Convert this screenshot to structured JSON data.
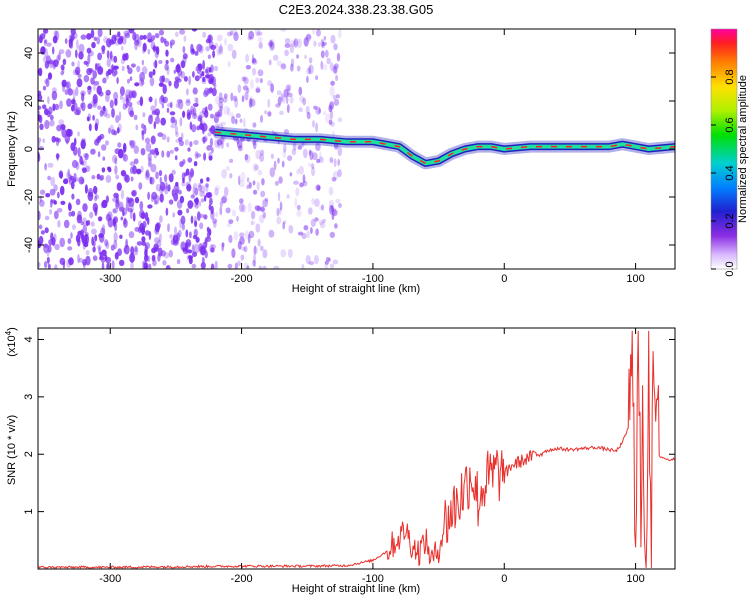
{
  "title": "C2E3.2024.338.23.38.G05",
  "colors": {
    "snr_line": "#e8302c",
    "scatter": "#7a2cf0",
    "track_core": "#ff2020",
    "track_mid": "#20e0a0",
    "track_edge": "#2020c0"
  },
  "chart_data": [
    {
      "type": "heatmap",
      "xlabel": "Height of straight line (km)",
      "ylabel": "Frequency (Hz)",
      "xlim": [
        -355,
        130
      ],
      "ylim": [
        -50,
        50
      ],
      "xticks": [
        -300,
        -200,
        -100,
        0,
        100
      ],
      "yticks": [
        -40,
        -20,
        0,
        20,
        40
      ],
      "grid": false,
      "colorbar": {
        "label": "Normalized spectral amplitude",
        "range": [
          0,
          1
        ],
        "ticks": [
          "0.0",
          "0.2",
          "0.4",
          "0.6",
          "0.8"
        ],
        "tick_values": [
          0.0,
          0.2,
          0.4,
          0.6,
          0.8
        ]
      },
      "noise_regions": [
        {
          "x": [
            -355,
            -220
          ],
          "density": "high"
        },
        {
          "x": [
            -220,
            -125
          ],
          "density": "medium"
        }
      ],
      "signal_track": {
        "x": [
          -220,
          -200,
          -180,
          -160,
          -140,
          -120,
          -100,
          -80,
          -70,
          -60,
          -50,
          -40,
          -30,
          -20,
          -10,
          0,
          20,
          40,
          60,
          80,
          90,
          100,
          110,
          130
        ],
        "y": [
          7,
          6,
          5,
          4,
          4,
          3,
          3,
          1,
          -3,
          -6,
          -5,
          -2,
          0,
          1,
          1,
          0,
          1,
          1,
          1,
          1,
          2,
          1,
          0,
          1
        ]
      }
    },
    {
      "type": "line",
      "xlabel": "Height of straight line (km)",
      "ylabel": "SNR (10 * v/v)",
      "y_multiplier": "(x10",
      "y_multiplier_exp": "4",
      "y_multiplier_close": ")",
      "xlim": [
        -355,
        130
      ],
      "ylim": [
        0,
        4.2
      ],
      "xticks": [
        -300,
        -200,
        -100,
        0,
        100
      ],
      "yticks": [
        1,
        2,
        3,
        4
      ],
      "grid": false,
      "series": [
        {
          "x": [
            -355,
            -300,
            -250,
            -200,
            -150,
            -120,
            -100,
            -90,
            -80,
            -75,
            -70,
            -65,
            -60,
            -55,
            -50,
            -45,
            -40,
            -35,
            -30,
            -25,
            -20,
            -15,
            -10,
            -5,
            0,
            5,
            10,
            20,
            30,
            40,
            50,
            60,
            70,
            80,
            85,
            90,
            95,
            98,
            100,
            102,
            104,
            106,
            108,
            110,
            112,
            114,
            116,
            120,
            125,
            130
          ],
          "y": [
            0.03,
            0.03,
            0.04,
            0.05,
            0.05,
            0.06,
            0.15,
            0.3,
            0.55,
            0.7,
            0.4,
            0.3,
            0.5,
            0.15,
            0.35,
            0.8,
            1.0,
            1.2,
            1.4,
            1.7,
            1.2,
            1.5,
            1.6,
            1.7,
            1.6,
            1.8,
            1.85,
            1.95,
            2.05,
            2.1,
            2.08,
            2.1,
            2.12,
            2.08,
            2.05,
            2.2,
            2.5,
            3.5,
            1.2,
            3.8,
            0.8,
            2.4,
            0.2,
            4.1,
            0.5,
            3.6,
            2.0,
            1.95,
            1.9,
            1.92
          ]
        }
      ]
    }
  ]
}
